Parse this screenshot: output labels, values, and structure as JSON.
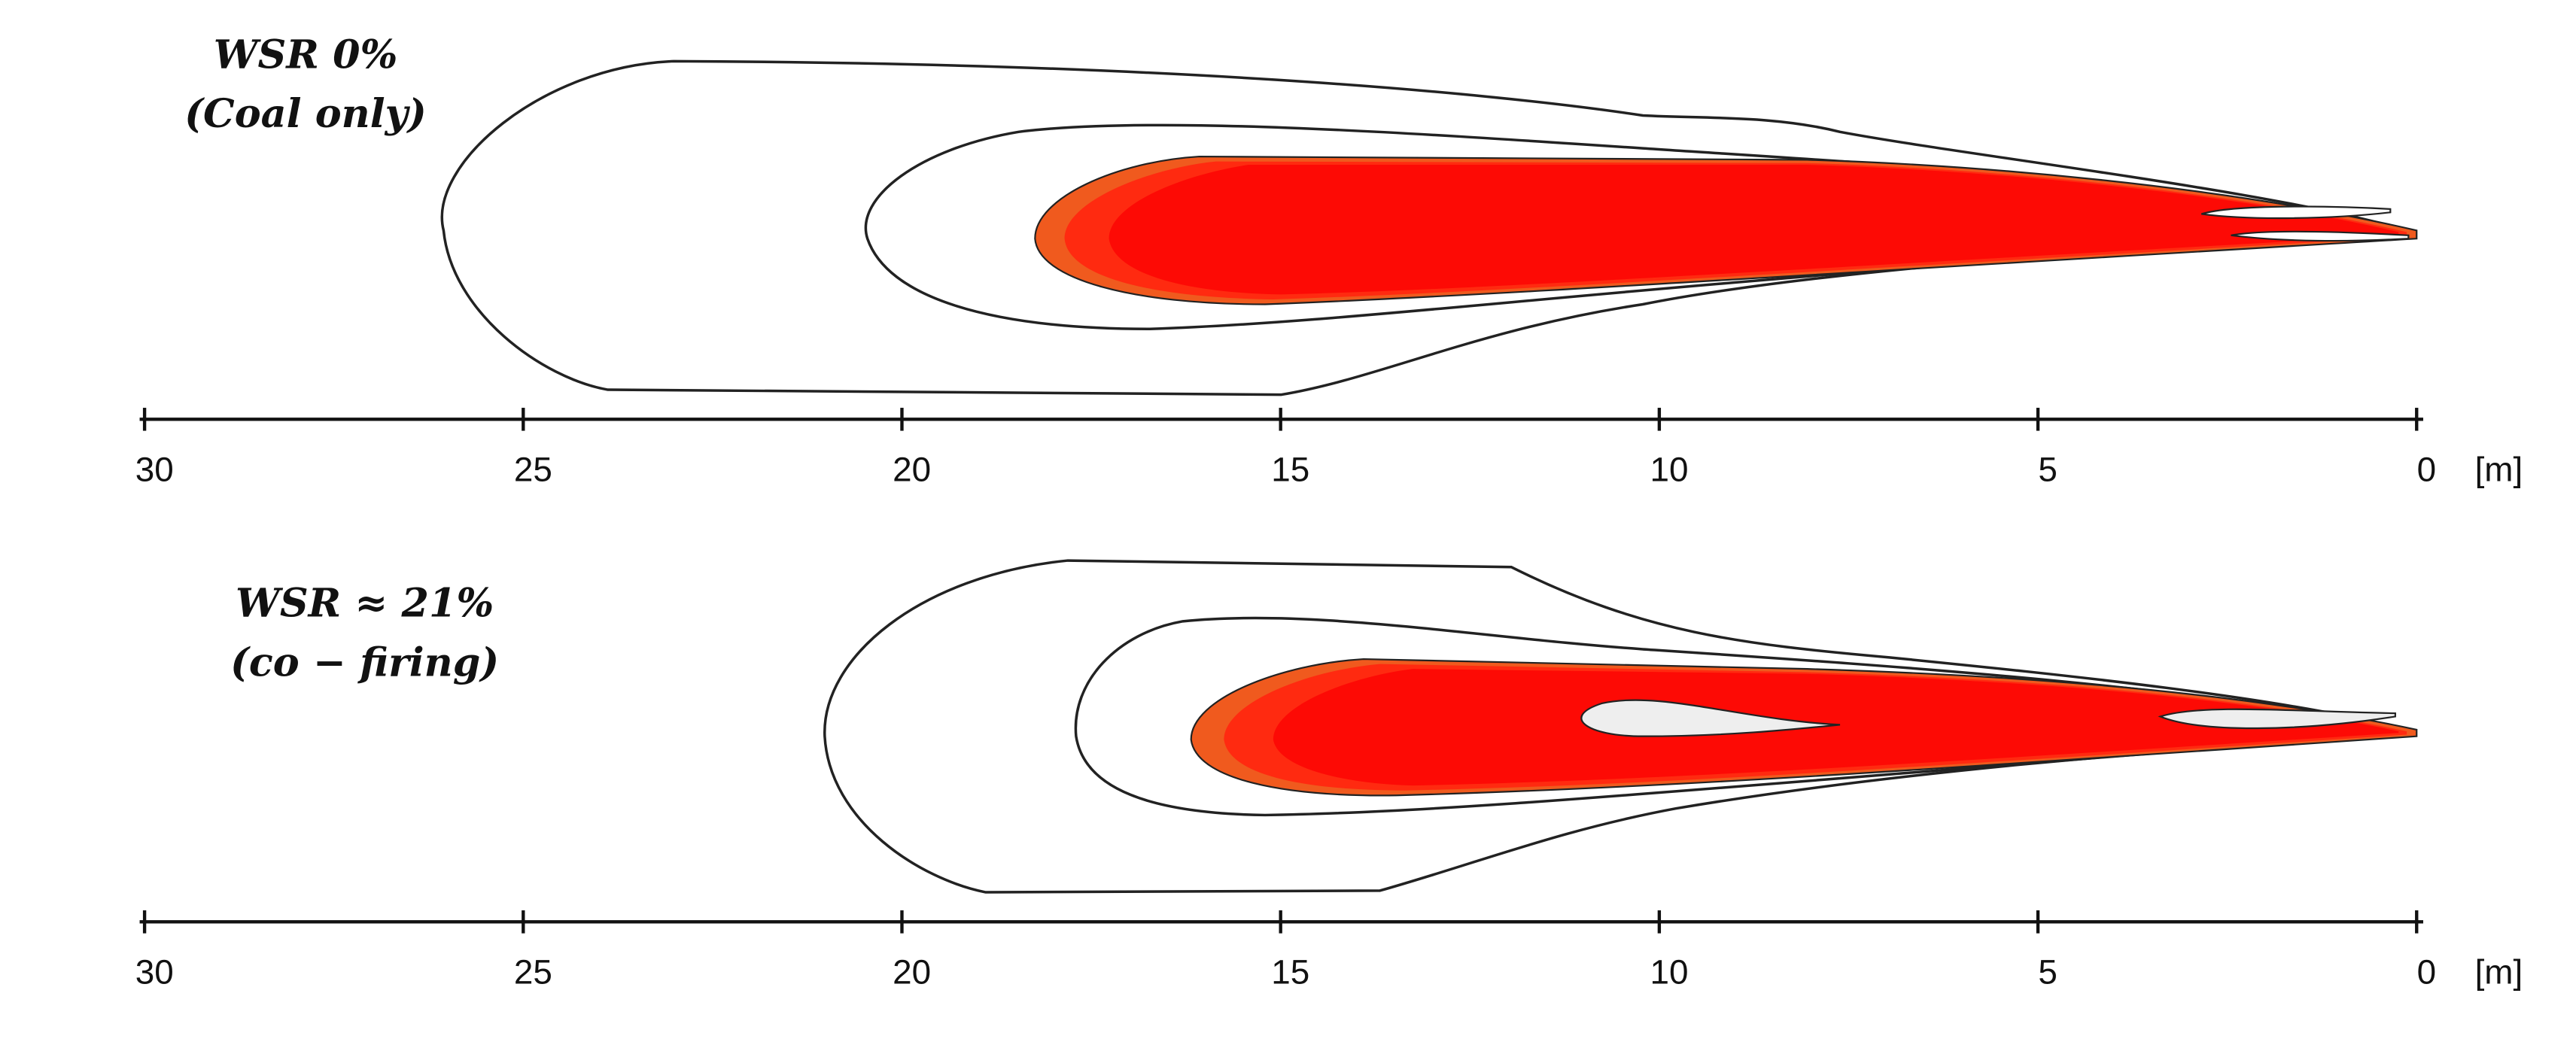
{
  "panels": [
    {
      "label": [
        "WSR 0%",
        "(Coal only)"
      ],
      "axis": {
        "xlim": [
          30,
          0
        ],
        "ticks": [
          30,
          25,
          20,
          15,
          10,
          5,
          0
        ],
        "unit": "[m]"
      }
    },
    {
      "label": [
        "WSR ≈ 21%",
        "(co − firing)"
      ],
      "axis": {
        "xlim": [
          30,
          0
        ],
        "ticks": [
          30,
          25,
          20,
          15,
          10,
          5,
          0
        ],
        "unit": "[m]"
      }
    }
  ]
}
